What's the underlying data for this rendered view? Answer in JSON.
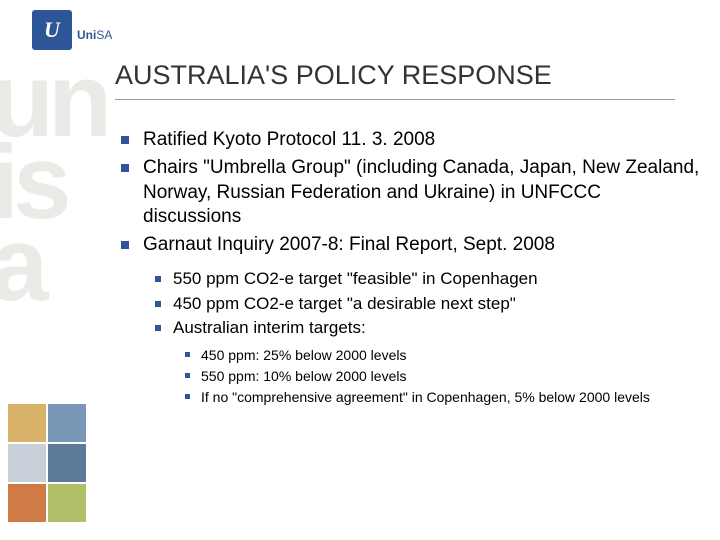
{
  "logo": {
    "letter": "U",
    "brand_1": "Uni",
    "brand_2": "SA"
  },
  "watermark": [
    "un",
    "is",
    "a"
  ],
  "title": "AUSTRALIA'S POLICY RESPONSE",
  "bullets": {
    "b0": "Ratified Kyoto Protocol 11. 3. 2008",
    "b1": "Chairs \"Umbrella Group\" (including Canada, Japan, New Zealand, Norway, Russian Federation and Ukraine) in UNFCCC discussions",
    "b2": "Garnaut Inquiry 2007-8: Final Report, Sept. 2008"
  },
  "sub1": {
    "s0": "550 ppm CO2-e target \"feasible\" in Copenhagen",
    "s1": "450 ppm CO2-e target \"a desirable next step\"",
    "s2": "Australian interim targets:"
  },
  "sub2": {
    "t0": "450 ppm: 25% below 2000 levels",
    "t1": "550 ppm: 10% below 2000 levels",
    "t2": "If no \"comprehensive agreement\" in Copenhagen, 5% below 2000 levels"
  },
  "colors": {
    "accent": "#2e5597",
    "watermark": "#eceae6",
    "grid": [
      "#d9b26a",
      "#7a97b8",
      "#c9cfd8",
      "#5d7a98",
      "#d07a45",
      "#b0c068"
    ]
  }
}
